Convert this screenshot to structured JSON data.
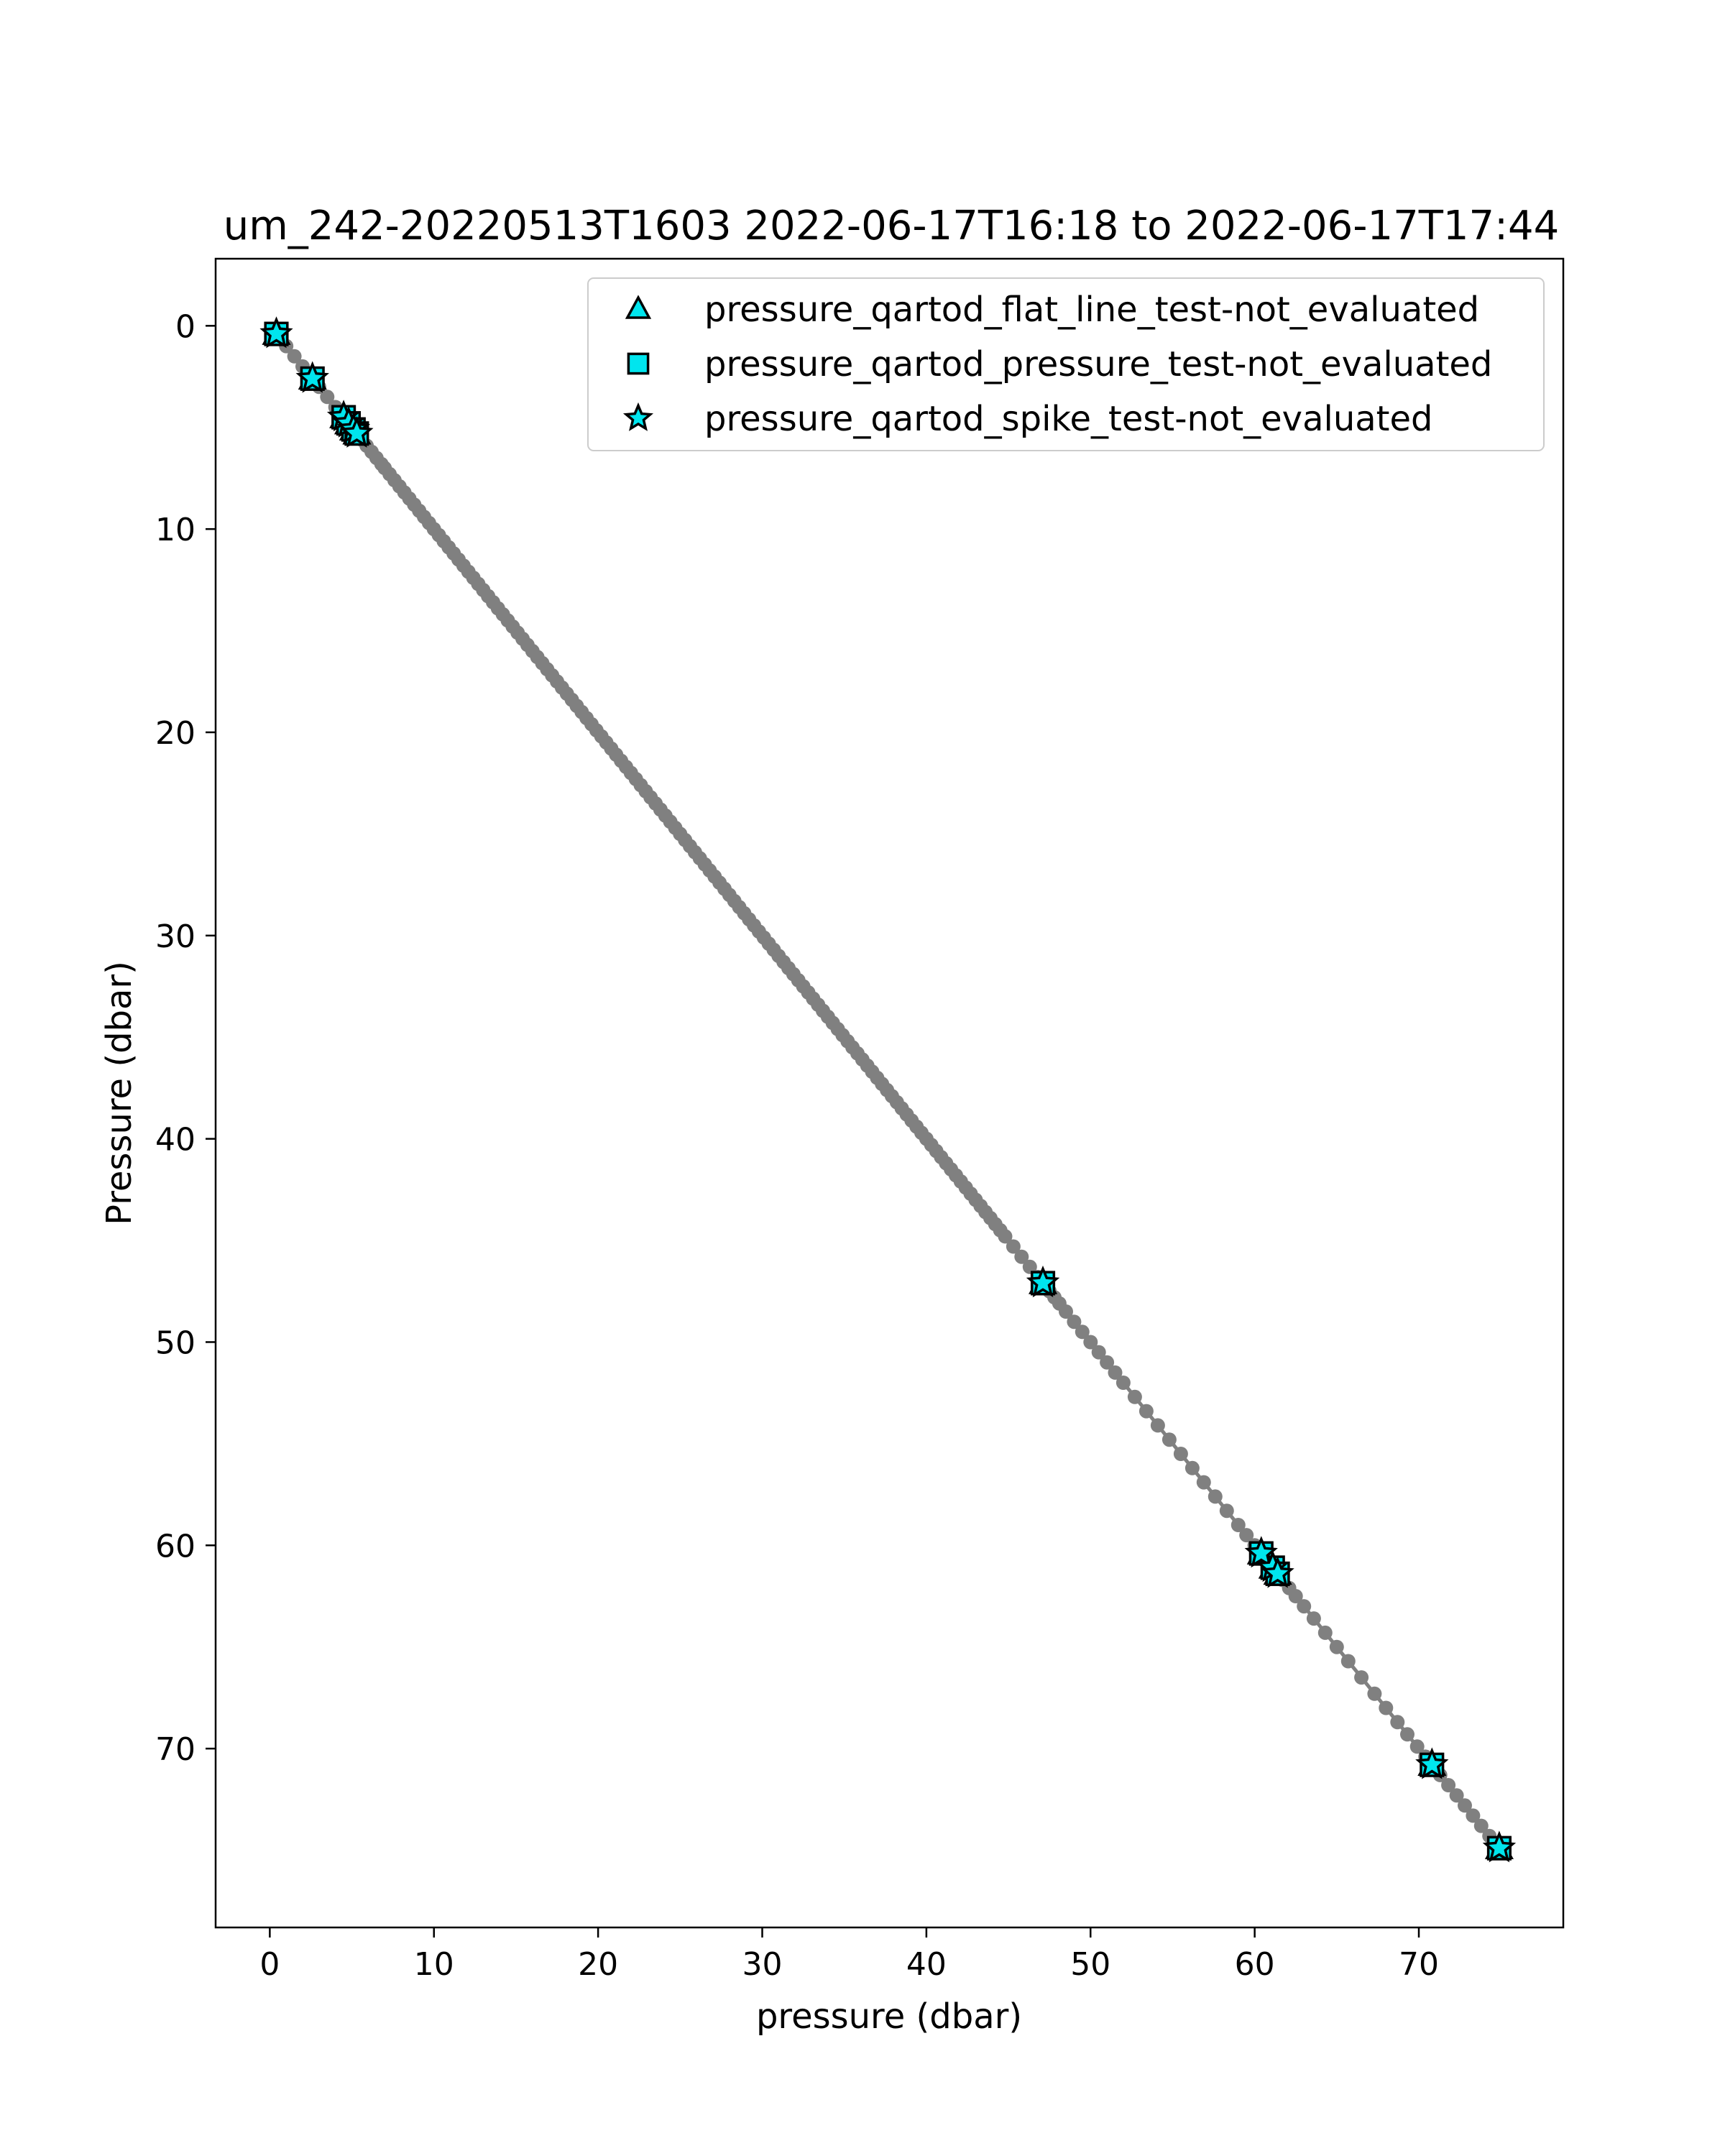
{
  "chart_data": {
    "type": "scatter",
    "title": "um_242-20220513T1603 2022-06-17T16:18 to 2022-06-17T17:44",
    "xlabel": "pressure (dbar)",
    "ylabel": "Pressure (dbar)",
    "xlim": [
      -3.3,
      78.8
    ],
    "ylim": [
      78.8,
      -3.3
    ],
    "y_inverted": true,
    "grid": false,
    "legend_position": "top-right",
    "xticks": [
      0,
      10,
      20,
      30,
      40,
      50,
      60,
      70
    ],
    "yticks": [
      0,
      10,
      20,
      30,
      40,
      50,
      60,
      70
    ],
    "colors": {
      "line": "#808080",
      "points": "#808080",
      "flag_fill": "#00e5ee",
      "flag_edge": "#000000"
    },
    "series": [
      {
        "kind": "line-with-points",
        "x": [
          0.3,
          0.6,
          1.0,
          1.5,
          2.0,
          2.5,
          2.7,
          3.0,
          3.5,
          4.0,
          4.5,
          4.8,
          5.2,
          5.4,
          5.6,
          5.9,
          6.2,
          6.5,
          6.8,
          7.0,
          7.3,
          7.6,
          7.9,
          8.2,
          8.5,
          8.8,
          9.1,
          9.4,
          9.7,
          10.0,
          10.3,
          10.6,
          10.9,
          11.2,
          11.5,
          11.8,
          12.1,
          12.4,
          12.7,
          13.0,
          13.3,
          13.6,
          13.9,
          14.2,
          14.5,
          14.8,
          15.1,
          15.4,
          15.7,
          16.0,
          16.3,
          16.6,
          16.9,
          17.2,
          17.5,
          17.8,
          18.1,
          18.4,
          18.7,
          19.0,
          19.3,
          19.6,
          19.9,
          20.2,
          20.5,
          20.8,
          21.1,
          21.4,
          21.7,
          22.0,
          22.3,
          22.6,
          22.9,
          23.2,
          23.5,
          23.8,
          24.1,
          24.4,
          24.7,
          25.0,
          25.3,
          25.6,
          25.9,
          26.2,
          26.5,
          26.8,
          27.1,
          27.4,
          27.7,
          28.0,
          28.3,
          28.6,
          28.9,
          29.2,
          29.5,
          29.8,
          30.1,
          30.4,
          30.7,
          31.0,
          31.3,
          31.6,
          31.9,
          32.2,
          32.5,
          32.8,
          33.1,
          33.4,
          33.7,
          34.0,
          34.3,
          34.6,
          34.9,
          35.2,
          35.5,
          35.8,
          36.1,
          36.4,
          36.7,
          37.0,
          37.3,
          37.6,
          37.9,
          38.2,
          38.5,
          38.8,
          39.1,
          39.4,
          39.7,
          40.0,
          40.3,
          40.6,
          40.9,
          41.2,
          41.5,
          41.8,
          42.1,
          42.4,
          42.7,
          43.0,
          43.3,
          43.6,
          43.9,
          44.2,
          44.5,
          44.8,
          45.3,
          45.8,
          46.3,
          46.8,
          47.2,
          47.5,
          47.8,
          48.1,
          48.5,
          49.0,
          49.5,
          50.0,
          50.5,
          51.0,
          51.5,
          52.0,
          52.7,
          53.4,
          54.1,
          54.8,
          55.5,
          56.2,
          56.9,
          57.6,
          58.3,
          59.0,
          59.5,
          60.0,
          60.5,
          60.9,
          61.3,
          61.7,
          62.1,
          62.5,
          63.0,
          63.6,
          64.3,
          65.0,
          65.7,
          66.5,
          67.3,
          68.0,
          68.7,
          69.3,
          69.9,
          70.4,
          70.9,
          71.3,
          71.8,
          72.3,
          72.8,
          73.3,
          73.8,
          74.3,
          74.9
        ],
        "y": [
          0.3,
          0.6,
          1.0,
          1.5,
          2.0,
          2.5,
          2.7,
          3.0,
          3.5,
          4.0,
          4.5,
          4.8,
          5.2,
          5.4,
          5.6,
          5.9,
          6.2,
          6.5,
          6.8,
          7.0,
          7.3,
          7.6,
          7.9,
          8.2,
          8.5,
          8.8,
          9.1,
          9.4,
          9.7,
          10.0,
          10.3,
          10.6,
          10.9,
          11.2,
          11.5,
          11.8,
          12.1,
          12.4,
          12.7,
          13.0,
          13.3,
          13.6,
          13.9,
          14.2,
          14.5,
          14.8,
          15.1,
          15.4,
          15.7,
          16.0,
          16.3,
          16.6,
          16.9,
          17.2,
          17.5,
          17.8,
          18.1,
          18.4,
          18.7,
          19.0,
          19.3,
          19.6,
          19.9,
          20.2,
          20.5,
          20.8,
          21.1,
          21.4,
          21.7,
          22.0,
          22.3,
          22.6,
          22.9,
          23.2,
          23.5,
          23.8,
          24.1,
          24.4,
          24.7,
          25.0,
          25.3,
          25.6,
          25.9,
          26.2,
          26.5,
          26.8,
          27.1,
          27.4,
          27.7,
          28.0,
          28.3,
          28.6,
          28.9,
          29.2,
          29.5,
          29.8,
          30.1,
          30.4,
          30.7,
          31.0,
          31.3,
          31.6,
          31.9,
          32.2,
          32.5,
          32.8,
          33.1,
          33.4,
          33.7,
          34.0,
          34.3,
          34.6,
          34.9,
          35.2,
          35.5,
          35.8,
          36.1,
          36.4,
          36.7,
          37.0,
          37.3,
          37.6,
          37.9,
          38.2,
          38.5,
          38.8,
          39.1,
          39.4,
          39.7,
          40.0,
          40.3,
          40.6,
          40.9,
          41.2,
          41.5,
          41.8,
          42.1,
          42.4,
          42.7,
          43.0,
          43.3,
          43.6,
          43.9,
          44.2,
          44.5,
          44.8,
          45.3,
          45.8,
          46.3,
          46.8,
          47.2,
          47.5,
          47.8,
          48.1,
          48.5,
          49.0,
          49.5,
          50.0,
          50.5,
          51.0,
          51.5,
          52.0,
          52.7,
          53.4,
          54.1,
          54.8,
          55.5,
          56.2,
          56.9,
          57.6,
          58.3,
          59.0,
          59.5,
          60.0,
          60.5,
          60.9,
          61.3,
          61.7,
          62.1,
          62.5,
          63.0,
          63.6,
          64.3,
          65.0,
          65.7,
          66.5,
          67.3,
          68.0,
          68.7,
          69.3,
          69.9,
          70.4,
          70.9,
          71.3,
          71.8,
          72.3,
          72.8,
          73.3,
          73.8,
          74.3,
          74.9
        ]
      },
      {
        "name": "pressure_qartod_flat_line_test-not_evaluated",
        "marker": "triangle",
        "x": [
          0.4,
          2.6,
          4.5,
          4.8,
          5.1,
          5.3,
          47.1,
          60.4,
          61.1,
          61.4,
          70.8,
          74.9
        ],
        "y": [
          0.4,
          2.6,
          4.5,
          4.8,
          5.1,
          5.3,
          47.1,
          60.4,
          61.1,
          61.4,
          70.8,
          74.9
        ]
      },
      {
        "name": "pressure_qartod_pressure_test-not_evaluated",
        "marker": "square",
        "x": [
          0.4,
          2.6,
          4.5,
          4.8,
          5.1,
          5.3,
          47.1,
          60.4,
          61.1,
          61.4,
          70.8,
          74.9
        ],
        "y": [
          0.4,
          2.6,
          4.5,
          4.8,
          5.1,
          5.3,
          47.1,
          60.4,
          61.1,
          61.4,
          70.8,
          74.9
        ]
      },
      {
        "name": "pressure_qartod_spike_test-not_evaluated",
        "marker": "star",
        "x": [
          0.4,
          2.6,
          4.5,
          4.8,
          5.1,
          5.3,
          47.1,
          60.4,
          61.1,
          61.4,
          70.8,
          74.9
        ],
        "y": [
          0.4,
          2.6,
          4.5,
          4.8,
          5.1,
          5.3,
          47.1,
          60.4,
          61.1,
          61.4,
          70.8,
          74.9
        ]
      }
    ]
  }
}
